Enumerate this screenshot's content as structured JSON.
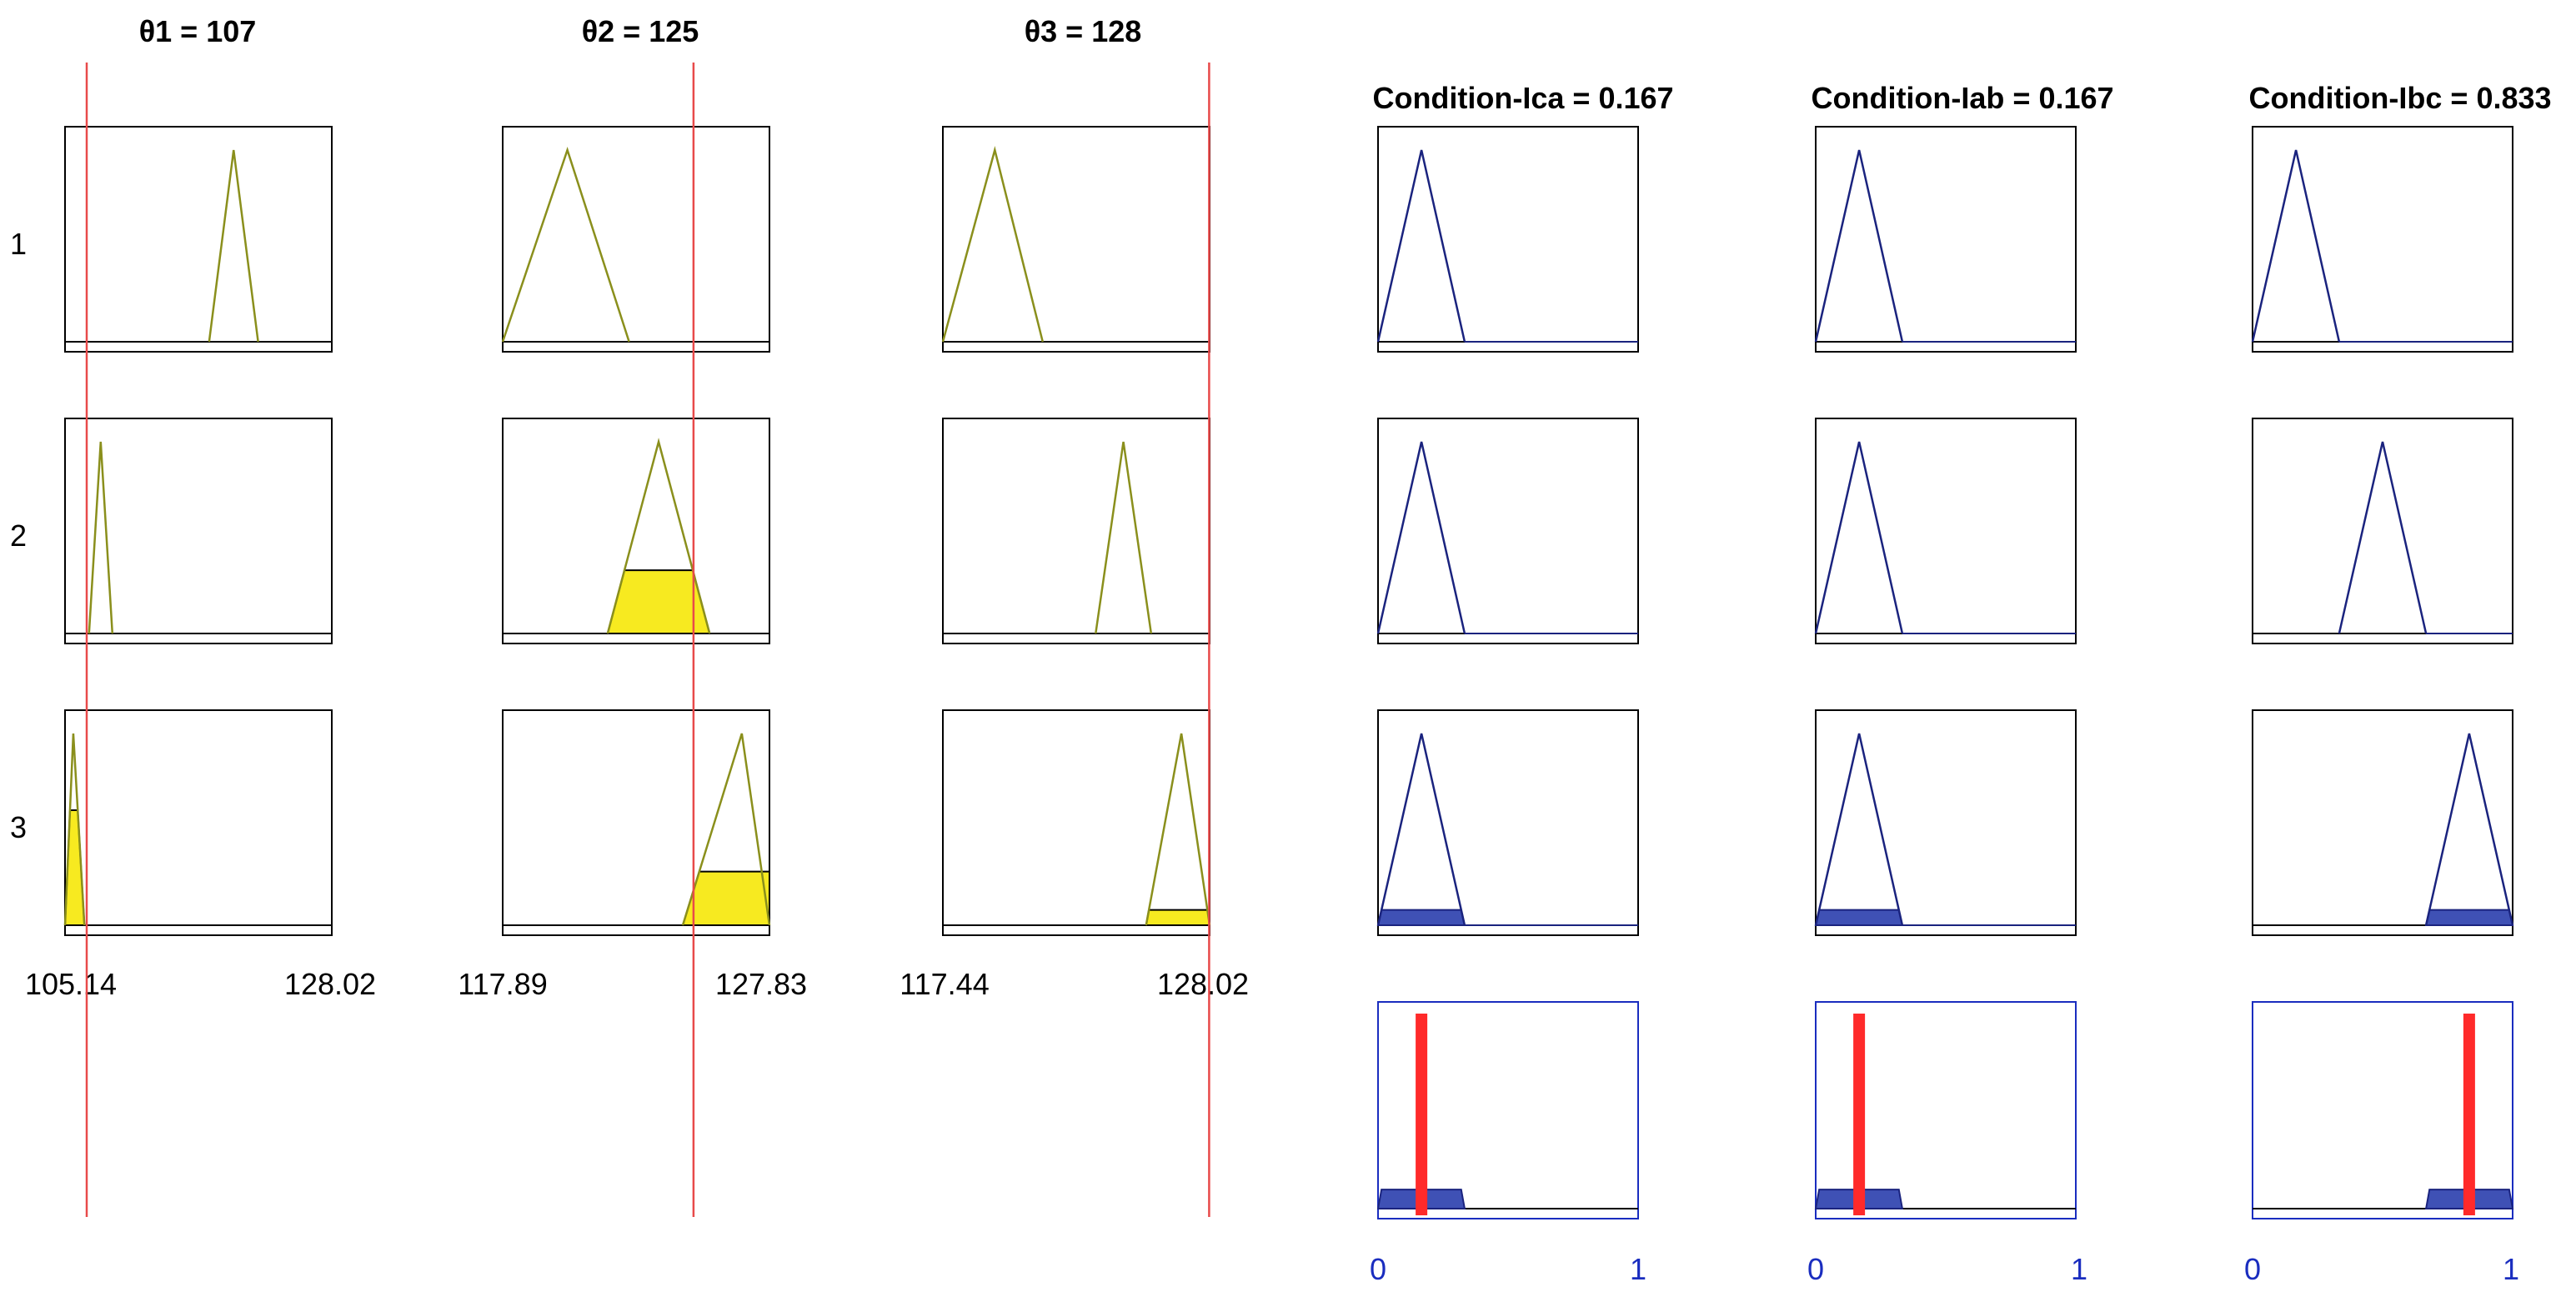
{
  "colors": {
    "input_mf": "#8a8f1c",
    "output_mf": "#1a237e",
    "highlight": "#f7ea20",
    "output_fill": "#3f51b5",
    "indicator": "#ff2a2a",
    "cursor": "#e84a4a",
    "agg_frame": "#1a2dbf",
    "output_tick": "#1a2dbf"
  },
  "rule_labels": [
    "1",
    "2",
    "3"
  ],
  "inputs": [
    {
      "title": "θ1 = 107",
      "value": 107,
      "range": [
        105.14,
        128.02
      ],
      "min_label": "105.14",
      "max_label": "128.02",
      "rules": [
        {
          "mf": [
            117.5,
            119.6,
            121.7
          ],
          "degree": 0
        },
        {
          "mf": [
            107.2,
            108.2,
            109.2
          ],
          "degree": 0
        },
        {
          "mf": [
            105.14,
            105.85,
            106.8
          ],
          "degree": 0.6
        }
      ]
    },
    {
      "title": "θ2 = 125",
      "value": 125,
      "range": [
        117.89,
        127.83
      ],
      "min_label": "117.89",
      "max_label": "127.83",
      "rules": [
        {
          "mf": [
            117.89,
            120.3,
            122.6
          ],
          "degree": 0
        },
        {
          "mf": [
            121.8,
            123.7,
            125.6
          ],
          "degree": 0.33
        },
        {
          "mf": [
            124.6,
            126.8,
            128.8
          ],
          "degree": 0.28
        }
      ]
    },
    {
      "title": "θ3 = 128",
      "value": 128,
      "range": [
        117.44,
        128.02
      ],
      "min_label": "117.44",
      "max_label": "128.02",
      "rules": [
        {
          "mf": [
            117.44,
            119.5,
            121.4
          ],
          "degree": 0
        },
        {
          "mf": [
            123.5,
            124.6,
            125.7
          ],
          "degree": 0
        },
        {
          "mf": [
            125.5,
            126.9,
            128.4
          ],
          "degree": 0.08
        }
      ]
    }
  ],
  "outputs": [
    {
      "title": "Condition-Ica = 0.167",
      "value": 0.167,
      "rules": [
        {
          "mf": [
            0,
            0.167,
            0.333
          ],
          "degree": 0
        },
        {
          "mf": [
            0,
            0.167,
            0.333
          ],
          "degree": 0
        },
        {
          "mf": [
            0,
            0.167,
            0.333
          ],
          "degree": 0.08
        }
      ]
    },
    {
      "title": "Condition-Iab = 0.167",
      "value": 0.167,
      "rules": [
        {
          "mf": [
            0,
            0.167,
            0.333
          ],
          "degree": 0
        },
        {
          "mf": [
            0,
            0.167,
            0.333
          ],
          "degree": 0
        },
        {
          "mf": [
            0,
            0.167,
            0.333
          ],
          "degree": 0.08
        }
      ]
    },
    {
      "title": "Condition-Ibc = 0.833",
      "value": 0.833,
      "rules": [
        {
          "mf": [
            0,
            0.167,
            0.333
          ],
          "degree": 0
        },
        {
          "mf": [
            0.333,
            0.5,
            0.667
          ],
          "degree": 0
        },
        {
          "mf": [
            0.667,
            0.833,
            1.0
          ],
          "degree": 0.08
        }
      ]
    }
  ],
  "output_axis": {
    "min_label": "0",
    "max_label": "1"
  }
}
